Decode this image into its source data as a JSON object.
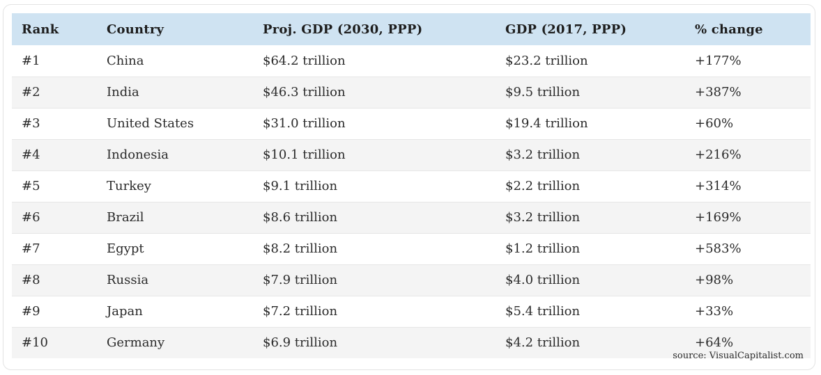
{
  "chart_data": {
    "type": "table",
    "columns": [
      "Rank",
      "Country",
      "Proj. GDP (2030, PPP)",
      "GDP (2017, PPP)",
      "% change"
    ],
    "rows": [
      [
        "#1",
        "China",
        "$64.2 trillion",
        "$23.2 trillion",
        "+177%"
      ],
      [
        "#2",
        "India",
        "$46.3 trillion",
        "$9.5 trillion",
        "+387%"
      ],
      [
        "#3",
        "United States",
        "$31.0 trillion",
        "$19.4 trillion",
        "+60%"
      ],
      [
        "#4",
        "Indonesia",
        "$10.1 trillion",
        "$3.2 trillion",
        "+216%"
      ],
      [
        "#5",
        "Turkey",
        "$9.1 trillion",
        "$2.2 trillion",
        "+314%"
      ],
      [
        "#6",
        "Brazil",
        "$8.6 trillion",
        "$3.2 trillion",
        "+169%"
      ],
      [
        "#7",
        "Egypt",
        "$8.2 trillion",
        "$1.2 trillion",
        "+583%"
      ],
      [
        "#8",
        "Russia",
        "$7.9 trillion",
        "$4.0 trillion",
        "+98%"
      ],
      [
        "#9",
        "Japan",
        "$7.2 trillion",
        "$5.4 trillion",
        "+33%"
      ],
      [
        "#10",
        "Germany",
        "$6.9 trillion",
        "$4.2 trillion",
        "+64%"
      ]
    ],
    "source": "source: VisualCapitalist.com"
  },
  "colors": {
    "header_bg": "#cfe3f2",
    "row_alt_bg": "#f4f4f4",
    "text": "#2a2a2a"
  }
}
